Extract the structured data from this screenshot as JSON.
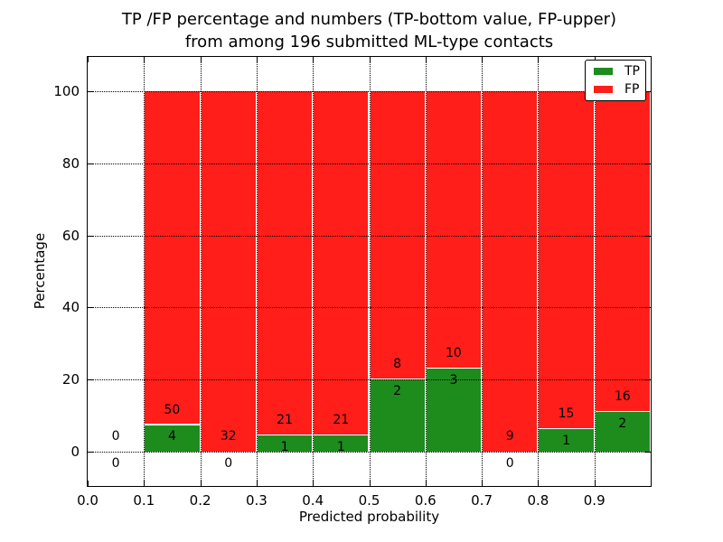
{
  "figure": {
    "title_line1": "TP /FP percentage and numbers (TP-bottom value, FP-upper)",
    "title_line2": "from among 196 submitted ML-type contacts"
  },
  "chart_data": {
    "type": "bar",
    "stacked": true,
    "title": "TP /FP percentage and numbers (TP-bottom value, FP-upper)\nfrom among 196 submitted ML-type contacts",
    "xlabel": "Predicted probability",
    "ylabel": "Percentage",
    "xlim": [
      0.0,
      1.0
    ],
    "ylim": [
      -9.5,
      109.5
    ],
    "grid": true,
    "bin_width": 0.1,
    "categories": [
      "0.0-0.1",
      "0.1-0.2",
      "0.2-0.3",
      "0.3-0.4",
      "0.4-0.5",
      "0.5-0.6",
      "0.6-0.7",
      "0.7-0.8",
      "0.8-0.9",
      "0.9-1.0"
    ],
    "bin_starts": [
      0.0,
      0.1,
      0.2,
      0.3,
      0.4,
      0.5,
      0.6,
      0.7,
      0.8,
      0.9
    ],
    "series": [
      {
        "name": "TP",
        "color": "#1d8c1d",
        "counts": [
          0,
          4,
          0,
          1,
          1,
          2,
          3,
          0,
          1,
          2
        ],
        "percentages": [
          0,
          7.41,
          0,
          4.55,
          4.55,
          20.0,
          23.08,
          0,
          6.25,
          11.11
        ]
      },
      {
        "name": "FP",
        "color": "#ff1e19",
        "counts": [
          0,
          50,
          32,
          21,
          21,
          8,
          10,
          9,
          15,
          16
        ],
        "percentages": [
          0,
          92.59,
          100.0,
          95.45,
          95.45,
          80.0,
          76.92,
          100.0,
          93.75,
          88.89
        ]
      }
    ],
    "xtick_labels": [
      "0.0",
      "0.1",
      "0.2",
      "0.3",
      "0.4",
      "0.5",
      "0.6",
      "0.7",
      "0.8",
      "0.9"
    ],
    "xtick_values": [
      0.0,
      0.1,
      0.2,
      0.3,
      0.4,
      0.5,
      0.6,
      0.7,
      0.8,
      0.9
    ],
    "ytick_labels": [
      "0",
      "20",
      "40",
      "60",
      "80",
      "100"
    ],
    "ytick_values": [
      0,
      20,
      40,
      60,
      80,
      100
    ],
    "legend": {
      "position": "upper right",
      "entries": [
        {
          "label": "TP",
          "color": "#1d8c1d"
        },
        {
          "label": "FP",
          "color": "#ff1e19"
        }
      ]
    }
  }
}
